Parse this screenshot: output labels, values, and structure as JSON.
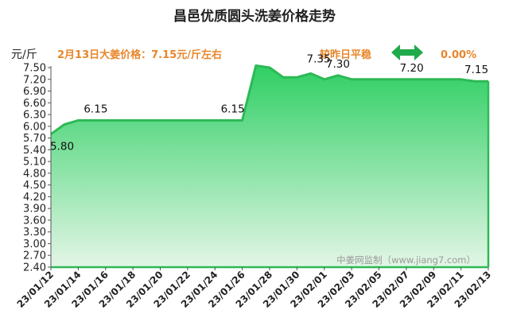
{
  "chart_data": {
    "type": "area",
    "title": "昌邑优质圆头洗姜价格走势",
    "ylabel": "元/斤",
    "summary_text": "2月13日大姜价格：7.15元/斤左右",
    "comparison_label": "较昨日平稳",
    "change_percent": "0.00%",
    "watermark": "中姜网监制（www.jiang7.com）",
    "ylim": [
      2.4,
      7.5
    ],
    "yticks": [
      "2.40",
      "2.70",
      "3.00",
      "3.30",
      "3.60",
      "3.90",
      "4.20",
      "4.50",
      "4.80",
      "5.10",
      "5.40",
      "5.70",
      "6.00",
      "6.30",
      "6.60",
      "6.90",
      "7.20",
      "7.50"
    ],
    "xticks": [
      "23/01/12",
      "23/01/14",
      "23/01/16",
      "23/01/18",
      "23/01/20",
      "23/01/22",
      "23/01/24",
      "23/01/26",
      "23/01/28",
      "23/01/30",
      "23/02/01",
      "23/02/03",
      "23/02/05",
      "23/02/07",
      "23/02/09",
      "23/02/11",
      "23/02/13"
    ],
    "series": [
      {
        "x": [
          "23/01/12",
          "23/01/13",
          "23/01/14",
          "23/01/15",
          "23/01/16",
          "23/01/17",
          "23/01/18",
          "23/01/19",
          "23/01/20",
          "23/01/21",
          "23/01/22",
          "23/01/23",
          "23/01/24",
          "23/01/25",
          "23/01/26",
          "23/01/27",
          "23/01/28",
          "23/01/29",
          "23/01/30",
          "23/01/31",
          "23/02/01",
          "23/02/02",
          "23/02/03",
          "23/02/04",
          "23/02/05",
          "23/02/06",
          "23/02/07",
          "23/02/08",
          "23/02/09",
          "23/02/10",
          "23/02/11",
          "23/02/12",
          "23/02/13"
        ],
        "values": [
          5.8,
          6.05,
          6.15,
          6.15,
          6.15,
          6.15,
          6.15,
          6.15,
          6.15,
          6.15,
          6.15,
          6.15,
          6.15,
          6.15,
          6.15,
          7.55,
          7.5,
          7.25,
          7.25,
          7.35,
          7.2,
          7.3,
          7.2,
          7.2,
          7.2,
          7.2,
          7.2,
          7.2,
          7.2,
          7.2,
          7.2,
          7.15,
          7.15
        ]
      }
    ],
    "data_labels": [
      {
        "x": "23/01/12",
        "text": "5.80"
      },
      {
        "x": "23/01/14",
        "text": "6.15"
      },
      {
        "x": "23/01/26",
        "text": "6.15"
      },
      {
        "x": "23/01/31",
        "text": "7.35"
      },
      {
        "x": "23/02/02",
        "text": "7.30"
      },
      {
        "x": "23/02/06",
        "text": "7.20"
      },
      {
        "x": "23/02/13",
        "text": "7.15"
      }
    ],
    "colors": {
      "line": "#2db955",
      "fill_top": "#2fcf64",
      "fill_bottom": "#e3f6e6",
      "accent_orange": "#e8862a",
      "arrow": "#1faa4b",
      "axis": "#555555"
    },
    "grid": false,
    "legend": "none"
  }
}
